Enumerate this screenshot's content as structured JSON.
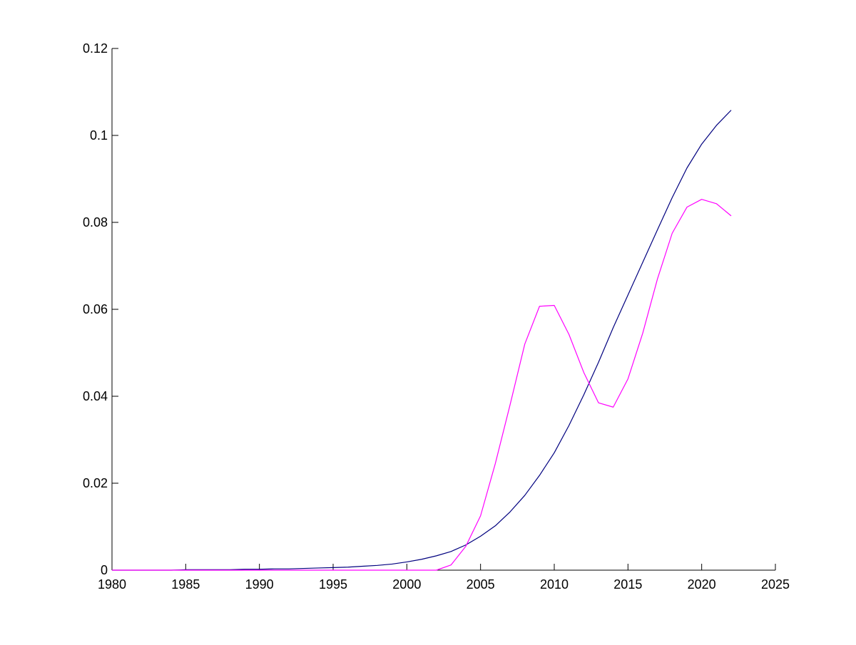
{
  "chart_data": {
    "type": "line",
    "xlim": [
      1980,
      2025
    ],
    "ylim": [
      0,
      0.12
    ],
    "xticks": [
      1980,
      1985,
      1990,
      1995,
      2000,
      2005,
      2010,
      2015,
      2020,
      2025
    ],
    "xtick_labels": [
      "1980",
      "1985",
      "1990",
      "1995",
      "2000",
      "2005",
      "2010",
      "2015",
      "2020",
      "2025"
    ],
    "yticks": [
      0,
      0.02,
      0.04,
      0.06,
      0.08,
      0.1,
      0.12
    ],
    "ytick_labels": [
      "0",
      "0.02",
      "0.04",
      "0.06",
      "0.08",
      "0.1",
      "0.12"
    ],
    "grid": false,
    "legend": "none",
    "x": [
      1980,
      1981,
      1982,
      1983,
      1984,
      1985,
      1986,
      1987,
      1988,
      1989,
      1990,
      1991,
      1992,
      1993,
      1994,
      1995,
      1996,
      1997,
      1998,
      1999,
      2000,
      2001,
      2002,
      2003,
      2004,
      2005,
      2006,
      2007,
      2008,
      2009,
      2010,
      2011,
      2012,
      2013,
      2014,
      2015,
      2016,
      2017,
      2018,
      2019,
      2020,
      2021,
      2022
    ],
    "series": [
      {
        "color": "#00007f",
        "values": [
          0.0,
          0.0,
          0.0,
          0.0,
          0.0,
          0.0001,
          0.0001,
          0.0001,
          0.0001,
          0.0002,
          0.0002,
          0.0003,
          0.0003,
          0.0004,
          0.0005,
          0.0006,
          0.0007,
          0.0009,
          0.0011,
          0.0014,
          0.0019,
          0.0025,
          0.0033,
          0.0043,
          0.0058,
          0.0078,
          0.0102,
          0.0134,
          0.0172,
          0.0218,
          0.027,
          0.0333,
          0.0403,
          0.0478,
          0.0558,
          0.0633,
          0.0708,
          0.0783,
          0.0857,
          0.0925,
          0.098,
          0.1023,
          0.1058
        ]
      },
      {
        "color": "#ff00ff",
        "values": [
          0,
          0,
          0,
          0,
          0,
          0,
          0,
          0,
          0,
          0,
          0,
          0,
          0,
          0,
          0,
          0,
          0,
          0,
          0,
          0,
          0,
          0,
          0,
          0.0012,
          0.0055,
          0.0125,
          0.0245,
          0.038,
          0.052,
          0.0607,
          0.0609,
          0.0542,
          0.0455,
          0.0385,
          0.0375,
          0.044,
          0.0545,
          0.067,
          0.0775,
          0.0835,
          0.0853,
          0.0843,
          0.0815
        ]
      }
    ]
  }
}
